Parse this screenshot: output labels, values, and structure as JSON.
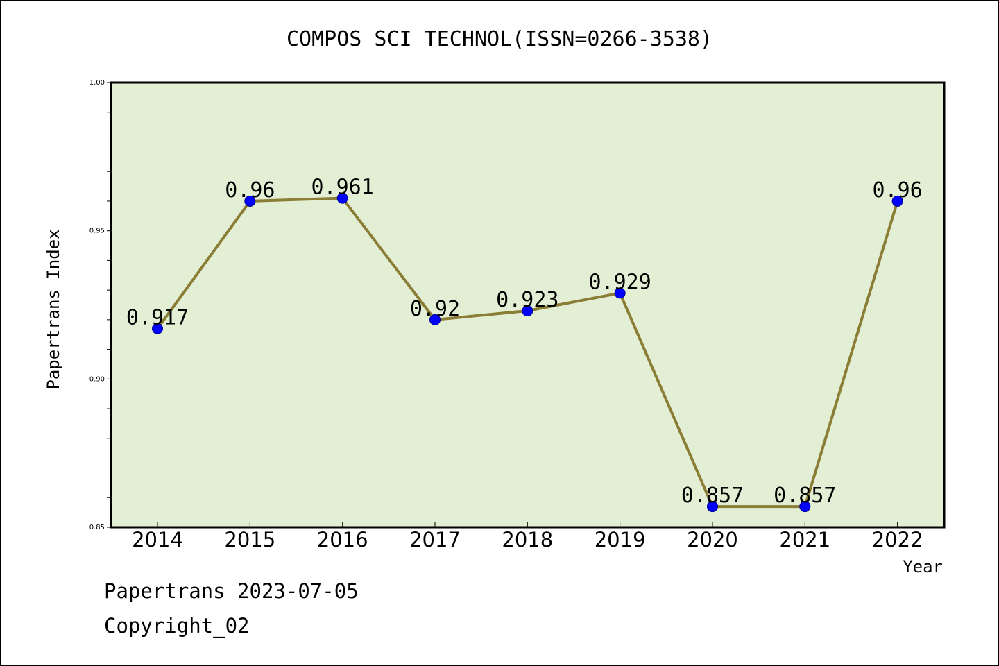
{
  "chart_data": {
    "type": "line",
    "title": "COMPOS SCI TECHNOL(ISSN=0266-3538)",
    "xlabel": "Year",
    "ylabel": "Papertrans Index",
    "x": [
      "2014",
      "2015",
      "2016",
      "2017",
      "2018",
      "2019",
      "2020",
      "2021",
      "2022"
    ],
    "series": [
      {
        "values": [
          0.917,
          0.96,
          0.961,
          0.92,
          0.923,
          0.929,
          0.857,
          0.857,
          0.96
        ],
        "labels": [
          "0.917",
          "0.96",
          "0.961",
          "0.92",
          "0.923",
          "0.929",
          "0.857",
          "0.857",
          "0.96"
        ]
      }
    ],
    "ylim": [
      0.85,
      1.0
    ],
    "yticks": [
      "1.00",
      "0.95",
      "0.90",
      "0.85"
    ],
    "grid": false,
    "colors": {
      "plot_background": "#e2efd4",
      "line": "#8b7d35",
      "marker": "#0000ff"
    }
  },
  "footer": {
    "line1": "Papertrans 2023-07-05",
    "line2": "Copyright_02"
  }
}
